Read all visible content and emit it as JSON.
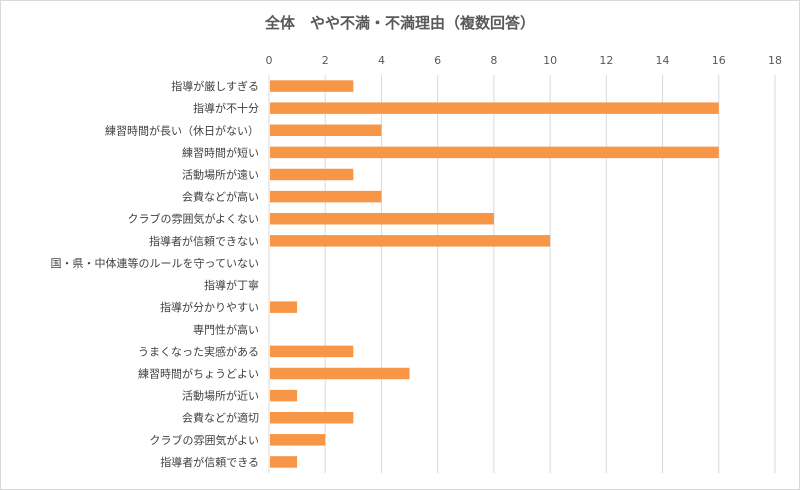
{
  "chart_data": {
    "type": "bar",
    "orientation": "horizontal",
    "title": "全体　やや不満・不満理由（複数回答）",
    "xlabel": "",
    "ylabel": "",
    "xlim": [
      0,
      18
    ],
    "x_ticks": [
      0,
      2,
      4,
      6,
      8,
      10,
      12,
      14,
      16,
      18
    ],
    "x_axis_position": "top",
    "grid": true,
    "legend": "none",
    "bar_color": "#f79646",
    "categories": [
      "指導が厳しすぎる",
      "指導が不十分",
      "練習時間が長い（休日がない）",
      "練習時間が短い",
      "活動場所が遠い",
      "会費などが高い",
      "クラブの雰囲気がよくない",
      "指導者が信頼できない",
      "国・県・中体連等のルールを守っていない",
      "指導が丁寧",
      "指導が分かりやすい",
      "専門性が高い",
      "うまくなった実感がある",
      "練習時間がちょうどよい",
      "活動場所が近い",
      "会費などが適切",
      "クラブの雰囲気がよい",
      "指導者が信頼できる"
    ],
    "values": [
      3,
      16,
      4,
      16,
      3,
      4,
      8,
      10,
      0,
      0,
      1,
      0,
      3,
      5,
      1,
      3,
      2,
      1
    ]
  }
}
